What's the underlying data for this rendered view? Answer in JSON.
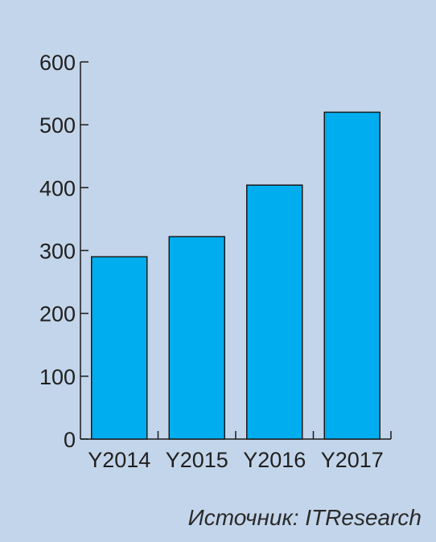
{
  "chart_data": {
    "type": "bar",
    "categories": [
      "Y2014",
      "Y2015",
      "Y2016",
      "Y2017"
    ],
    "values": [
      290,
      322,
      404,
      520
    ],
    "title": "",
    "xlabel": "",
    "ylabel": "",
    "ylim": [
      0,
      600
    ],
    "yticks": [
      "0",
      "100",
      "200",
      "300",
      "400",
      "500",
      "600"
    ],
    "grid": false,
    "bar_color": "#00aeef",
    "bar_outline": "#1a1a1a"
  },
  "source_text": "Источник: ITResearch"
}
